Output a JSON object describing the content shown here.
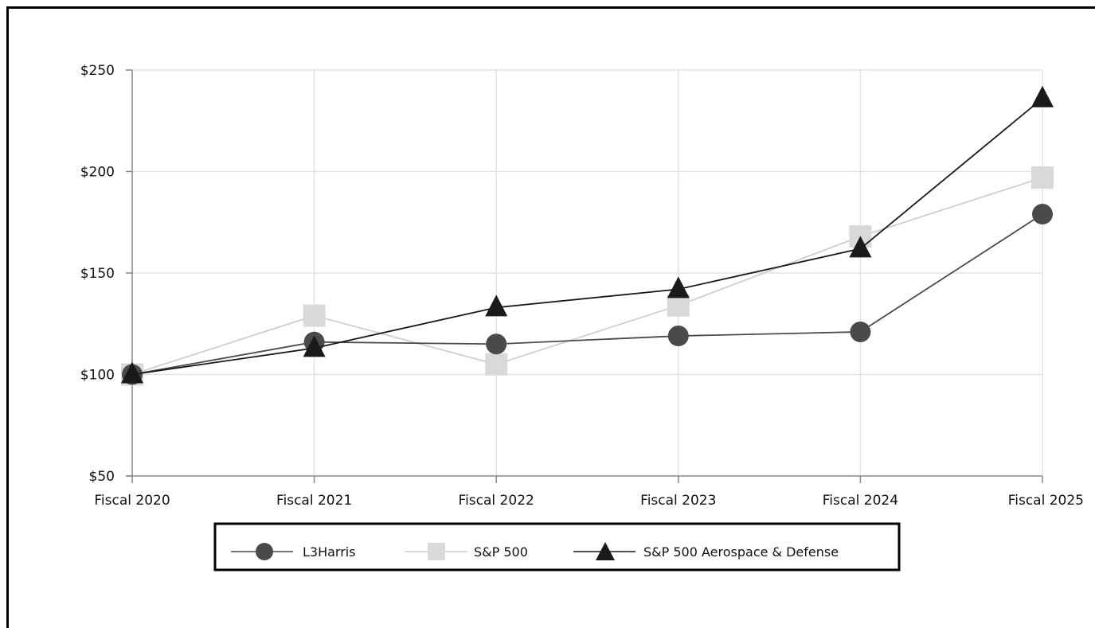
{
  "chart_data": {
    "type": "line",
    "title": "",
    "xlabel": "",
    "ylabel": "",
    "categories": [
      "Fiscal 2020",
      "Fiscal 2021",
      "Fiscal 2022",
      "Fiscal 2023",
      "Fiscal 2024",
      "Fiscal 2025"
    ],
    "y_ticks": [
      "$50",
      "$100",
      "$150",
      "$200",
      "$250"
    ],
    "ylim": [
      50,
      250
    ],
    "grid": true,
    "legend_position": "bottom-center",
    "series": [
      {
        "name": "L3Harris",
        "values": [
          100,
          116,
          115,
          119,
          121,
          179
        ],
        "marker": "circle",
        "line_color": "#4a4a4a",
        "marker_color": "#4a4a4a"
      },
      {
        "name": "S&P 500",
        "values": [
          100,
          129,
          105,
          134,
          168,
          197
        ],
        "marker": "square",
        "line_color": "#cfcfcf",
        "marker_color": "#d9d9d9"
      },
      {
        "name": "S&P 500 Aerospace & Defense",
        "values": [
          100,
          113,
          133,
          142,
          162,
          236
        ],
        "marker": "triangle",
        "line_color": "#1a1a1a",
        "marker_color": "#1a1a1a"
      }
    ]
  }
}
